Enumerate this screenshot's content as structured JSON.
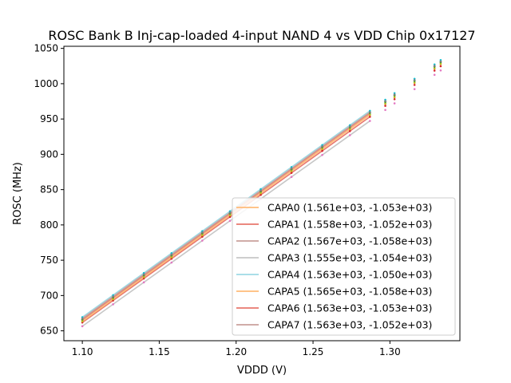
{
  "chart_data": {
    "type": "line",
    "title": "ROSC Bank B Inj-cap-loaded 4-input NAND 4 vs VDD Chip 0x17127",
    "xlabel": "VDDD (V)",
    "ylabel": "ROSC (MHz)",
    "xlim": [
      1.088,
      1.3455
    ],
    "ylim": [
      636,
      1053
    ],
    "xticks": [
      1.1,
      1.15,
      1.2,
      1.25,
      1.3
    ],
    "xtick_labels": [
      "1.10",
      "1.15",
      "1.20",
      "1.25",
      "1.30"
    ],
    "yticks": [
      650,
      700,
      750,
      800,
      850,
      900,
      950,
      1000,
      1050
    ],
    "ytick_labels": [
      "650",
      "700",
      "750",
      "800",
      "850",
      "900",
      "950",
      "1000",
      "1050"
    ],
    "grid": false,
    "legend_position": "lower-right",
    "fit_range": [
      1.1,
      1.287
    ],
    "x_points": [
      1.1,
      1.12,
      1.14,
      1.158,
      1.178,
      1.196,
      1.216,
      1.236,
      1.256,
      1.274,
      1.287,
      1.297,
      1.303,
      1.316,
      1.329,
      1.333
    ],
    "series": [
      {
        "name": "CAPA0 (1.561e+03, -1.053e+03)",
        "slope": 1561,
        "intercept": -1053,
        "color": "#ffbb78",
        "marker": "#ff7f0e"
      },
      {
        "name": "CAPA1 (1.558e+03, -1.052e+03)",
        "slope": 1558,
        "intercept": -1052,
        "color": "#e8776d",
        "marker": "#d62728"
      },
      {
        "name": "CAPA2 (1.567e+03, -1.058e+03)",
        "slope": 1567,
        "intercept": -1058,
        "color": "#c9a19c",
        "marker": "#8c564b"
      },
      {
        "name": "CAPA3 (1.555e+03, -1.054e+03)",
        "slope": 1555,
        "intercept": -1054,
        "color": "#c7c7c7",
        "marker": "#e377c2"
      },
      {
        "name": "CAPA4 (1.563e+03, -1.050e+03)",
        "slope": 1563,
        "intercept": -1050,
        "color": "#9edae5",
        "marker": "#17becf"
      },
      {
        "name": "CAPA5 (1.565e+03, -1.058e+03)",
        "slope": 1565,
        "intercept": -1058,
        "color": "#ffbb78",
        "marker": "#bcbd22"
      },
      {
        "name": "CAPA6 (1.563e+03, -1.053e+03)",
        "slope": 1563,
        "intercept": -1053,
        "color": "#e8776d",
        "marker": "#2ca02c"
      },
      {
        "name": "CAPA7 (1.563e+03, -1.052e+03)",
        "slope": 1563,
        "intercept": -1052,
        "color": "#c9a19c",
        "marker": "#7f7f7f"
      }
    ]
  }
}
